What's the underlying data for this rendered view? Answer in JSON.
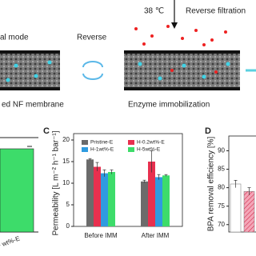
{
  "schematic": {
    "left_mode": "al mode",
    "arrow_label": "Reverse",
    "temperature": "38 ℃",
    "filtration": "Reverse filtration",
    "left_caption": "ed NF membrane",
    "right_caption": "Enzyme immobilization"
  },
  "panel_b": {
    "category": "F wt%-E"
  },
  "chart_data": [
    {
      "type": "bar",
      "panel": "C",
      "y_label": "Permeability [L m⁻² h⁻¹ bar⁻¹]",
      "categories": [
        "Before IMM",
        "After IMM"
      ],
      "series": [
        {
          "name": "Pristine-E",
          "color": "#6b6b6b",
          "values": [
            15.5,
            10.4
          ],
          "errors": [
            0.2,
            0.3
          ]
        },
        {
          "name": "H-0.2wt%-E",
          "color": "#e8304f",
          "values": [
            13.8,
            15.0
          ],
          "errors": [
            1.0,
            2.5
          ]
        },
        {
          "name": "H-1wt%-E",
          "color": "#2f9be0",
          "values": [
            12.3,
            11.4
          ],
          "errors": [
            0.8,
            0.6
          ]
        },
        {
          "name": "H-5wt%-E",
          "color": "#3ddc6a",
          "values": [
            12.6,
            11.8
          ],
          "errors": [
            0.5,
            0.2
          ]
        }
      ],
      "ylim": [
        0,
        20
      ],
      "yticks": [
        0,
        5,
        10,
        15,
        20
      ]
    },
    {
      "type": "bar",
      "panel": "D",
      "y_label": "BPA removal efficiency [%]",
      "categories": [
        null,
        null
      ],
      "series": [
        {
          "colors": [
            "#ffffff",
            "#f4a6b8"
          ],
          "values": [
            81,
            79
          ],
          "errors": [
            1,
            1
          ]
        }
      ],
      "ylim": [
        68,
        94
      ],
      "yticks": [
        70,
        75,
        80,
        85,
        90
      ]
    }
  ]
}
